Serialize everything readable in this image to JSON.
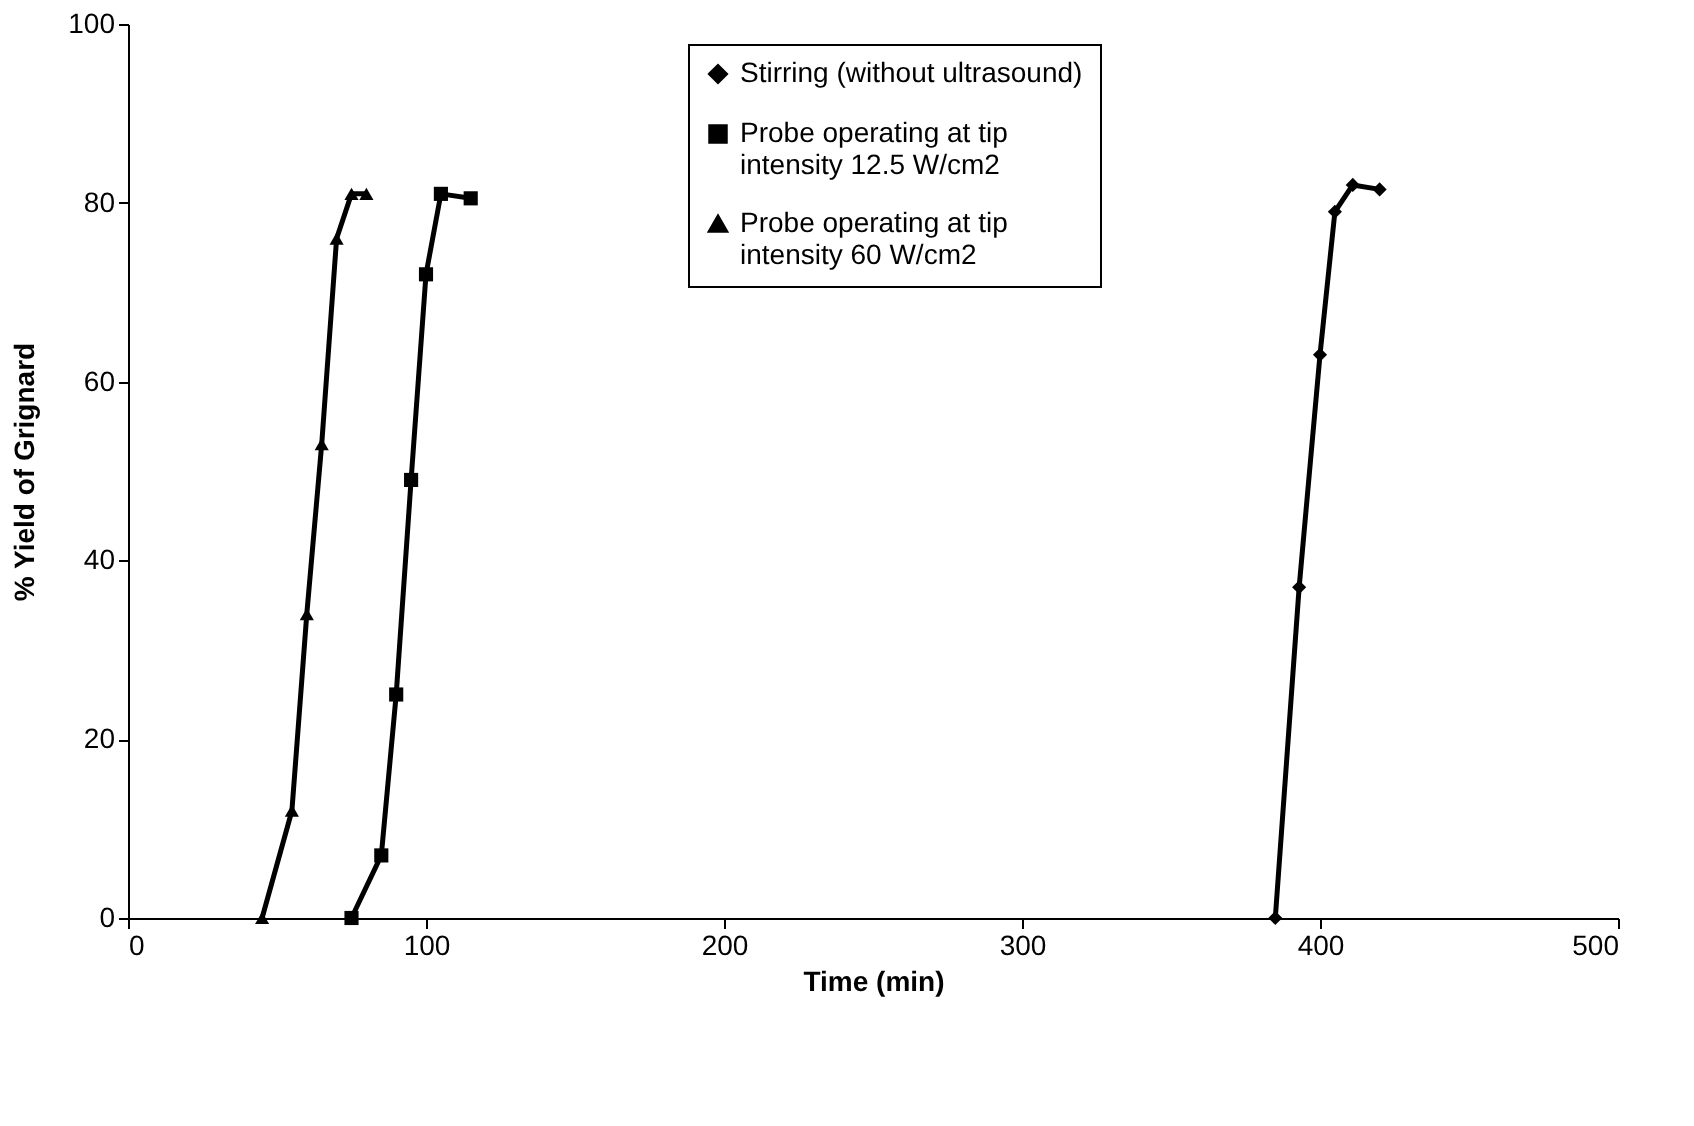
{
  "chart_data": {
    "type": "line",
    "xlabel": "Time (min)",
    "ylabel": "% Yield of Grignard",
    "xlim": [
      0,
      500
    ],
    "xticks": [
      0,
      100,
      200,
      300,
      400,
      500
    ],
    "ylim": [
      0,
      100
    ],
    "yticks": [
      0,
      20,
      40,
      60,
      80,
      100
    ],
    "grid": false,
    "legend": "top",
    "line_style": "solid",
    "series": [
      {
        "name": "Stirring (without ultrasound)",
        "color": "#000000",
        "marker": "diamond",
        "x": [
          385,
          393,
          400,
          405,
          411,
          420
        ],
        "values": [
          0,
          37,
          63,
          79,
          82,
          81.5
        ]
      },
      {
        "name": "Probe operating at tip\nintensity 12.5 W/cm2",
        "color": "#000000",
        "marker": "square",
        "x": [
          75,
          85,
          90,
          95,
          100,
          105,
          115
        ],
        "values": [
          0,
          7,
          25,
          49,
          72,
          81,
          80.5
        ]
      },
      {
        "name": "Probe operating at tip\nintensity 60 W/cm2",
        "color": "#000000",
        "marker": "triangle",
        "x": [
          45,
          55,
          60,
          65,
          70,
          75,
          80
        ],
        "values": [
          0,
          12,
          34,
          53,
          76,
          81,
          81
        ]
      }
    ]
  }
}
